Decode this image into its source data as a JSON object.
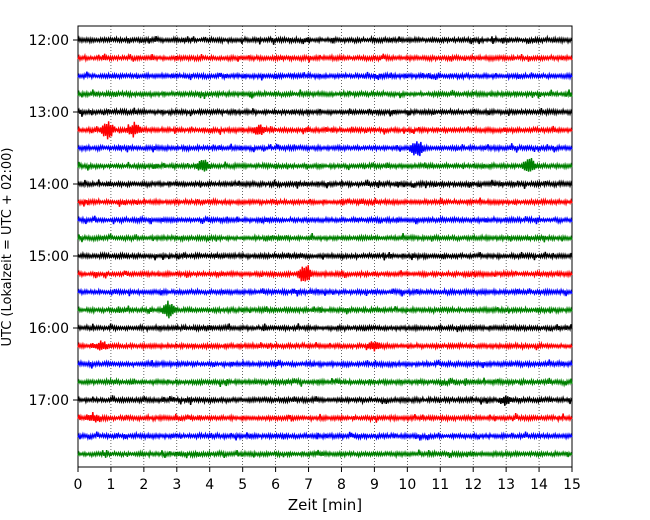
{
  "chart_data": {
    "type": "line",
    "title": "",
    "xlabel": "Zeit  [min]",
    "ylabel": "UTC (Lokalzeit = UTC + 02:00)",
    "xlim": [
      0,
      15
    ],
    "x_ticks": [
      "0",
      "1",
      "2",
      "3",
      "4",
      "5",
      "6",
      "7",
      "8",
      "9",
      "10",
      "11",
      "12",
      "13",
      "14",
      "15"
    ],
    "y_tick_labels": [
      "12:00",
      "13:00",
      "14:00",
      "15:00",
      "16:00",
      "17:00"
    ],
    "grid": "vertical-dotted",
    "trace_colors": [
      "#000000",
      "#ff0000",
      "#0000ff",
      "#008000"
    ],
    "trace_interval_minutes": 15,
    "start_time": "12:00",
    "end_time": "17:45",
    "trace_count": 24
  }
}
